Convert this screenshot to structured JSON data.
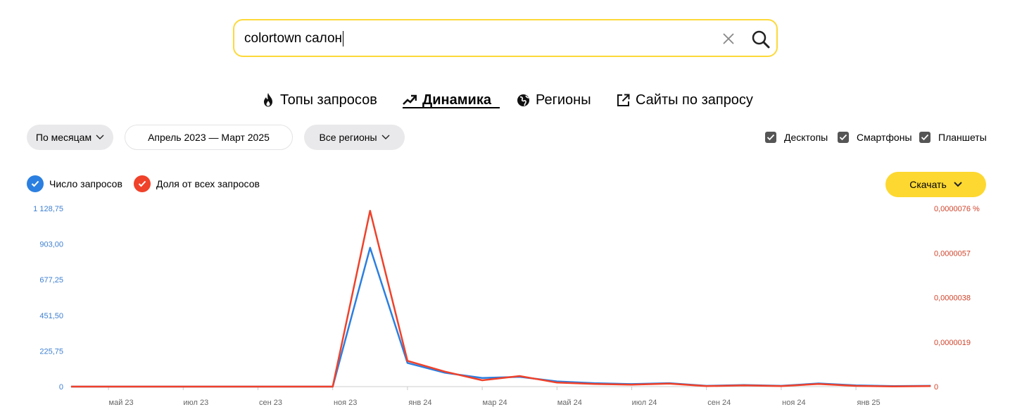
{
  "search": {
    "value": "colortown салон"
  },
  "tabs": [
    {
      "label": "Топы запросов",
      "icon": "fire-icon"
    },
    {
      "label": "Динамика",
      "icon": "trend-icon",
      "active": true
    },
    {
      "label": "Регионы",
      "icon": "globe-icon"
    },
    {
      "label": "Сайты по запросу",
      "icon": "external-link-icon"
    }
  ],
  "filters": {
    "period": "По месяцам",
    "date_range": "Апрель 2023 — Март 2025",
    "region": "Все регионы"
  },
  "devices": [
    {
      "label": "Десктопы",
      "checked": true
    },
    {
      "label": "Смартфоны",
      "checked": true
    },
    {
      "label": "Планшеты",
      "checked": true
    }
  ],
  "legend": {
    "count_label": "Число запросов",
    "share_label": "Доля от всех запросов"
  },
  "download_label": "Скачать",
  "colors": {
    "count": "#2b7fe0",
    "share": "#f0412a",
    "accent": "#fdd830"
  },
  "chart_data": {
    "type": "line",
    "x": [
      "апр 23",
      "май 23",
      "июн 23",
      "июл 23",
      "авг 23",
      "сен 23",
      "окт 23",
      "ноя 23",
      "дек 23",
      "янв 24",
      "фев 24",
      "мар 24",
      "апр 24",
      "май 24",
      "июн 24",
      "июл 24",
      "авг 24",
      "сен 24",
      "окт 24",
      "ноя 24",
      "дек 24",
      "янв 25",
      "фев 25",
      "мар 25"
    ],
    "x_tick_labels": [
      "май 23",
      "июл 23",
      "сен 23",
      "ноя 23",
      "янв 24",
      "мар 24",
      "май 24",
      "июл 24",
      "сен 24",
      "ноя 24",
      "янв 25"
    ],
    "series": [
      {
        "name": "Число запросов",
        "axis": "left",
        "values": [
          0,
          0,
          0,
          0,
          0,
          0,
          0,
          0,
          880,
          150,
          88,
          55,
          62,
          33,
          22,
          16,
          22,
          5,
          10,
          5,
          20,
          8,
          3,
          5
        ]
      },
      {
        "name": "Доля от всех запросов",
        "axis": "right",
        "values": [
          0,
          0,
          0,
          0,
          0,
          0,
          0,
          0,
          7.5e-06,
          1.1e-06,
          6.4e-07,
          2.7e-07,
          4.5e-07,
          1.7e-07,
          1.1e-07,
          8e-08,
          1.3e-07,
          2e-08,
          5e-08,
          2e-08,
          1.1e-07,
          3e-08,
          1e-08,
          2e-08
        ]
      }
    ],
    "left_axis": {
      "ticks": [
        "0",
        "225,75",
        "451,50",
        "677,25",
        "903,00",
        "1 128,75"
      ],
      "ylim": [
        0,
        1128.75
      ]
    },
    "right_axis": {
      "ticks": [
        "0",
        "0,0000019",
        "0,0000038",
        "0,0000057",
        "0,0000076 %"
      ],
      "ylim": [
        0,
        7.6e-06
      ]
    }
  }
}
